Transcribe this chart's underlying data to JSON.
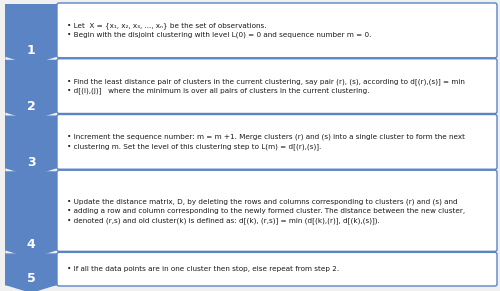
{
  "background_color": "#f0f0f0",
  "arrow_color": "#5b84c4",
  "box_border_color": "#5b84c4",
  "box_fill_color": "#ffffff",
  "number_color": "#ffffff",
  "number_bg_color": "#5b84c4",
  "steps": [
    {
      "number": "1",
      "lines": [
        "Let  X = {x₁, x₂, x₃, ..., xₙ} be the set of observations.",
        "Begin with the disjoint clustering with level L(0) = 0 and sequence number m = 0."
      ]
    },
    {
      "number": "2",
      "lines": [
        "Find the least distance pair of clusters in the current clustering, say pair (r), (s), according to d[(r),(s)] = min",
        "d[(i),(j)]   where the minimum is over all pairs of clusters in the current clustering."
      ]
    },
    {
      "number": "3",
      "lines": [
        "Increment the sequence number: m = m +1. Merge clusters (r) and (s) into a single cluster to form the next",
        "clustering m. Set the level of this clustering step to L(m) = d[(r),(s)]."
      ]
    },
    {
      "number": "4",
      "lines": [
        "Update the distance matrix, D, by deleting the rows and columns corresponding to clusters (r) and (s) and",
        "adding a row and column corresponding to the newly formed cluster. The distance between the new cluster,",
        "denoted (r,s) and old cluster(k) is defined as: d[(k), (r,s)] = min (d[(k),(r)], d[(k),(s)])."
      ]
    },
    {
      "number": "5",
      "lines": [
        "If all the data points are in one cluster then stop, else repeat from step 2."
      ]
    }
  ]
}
